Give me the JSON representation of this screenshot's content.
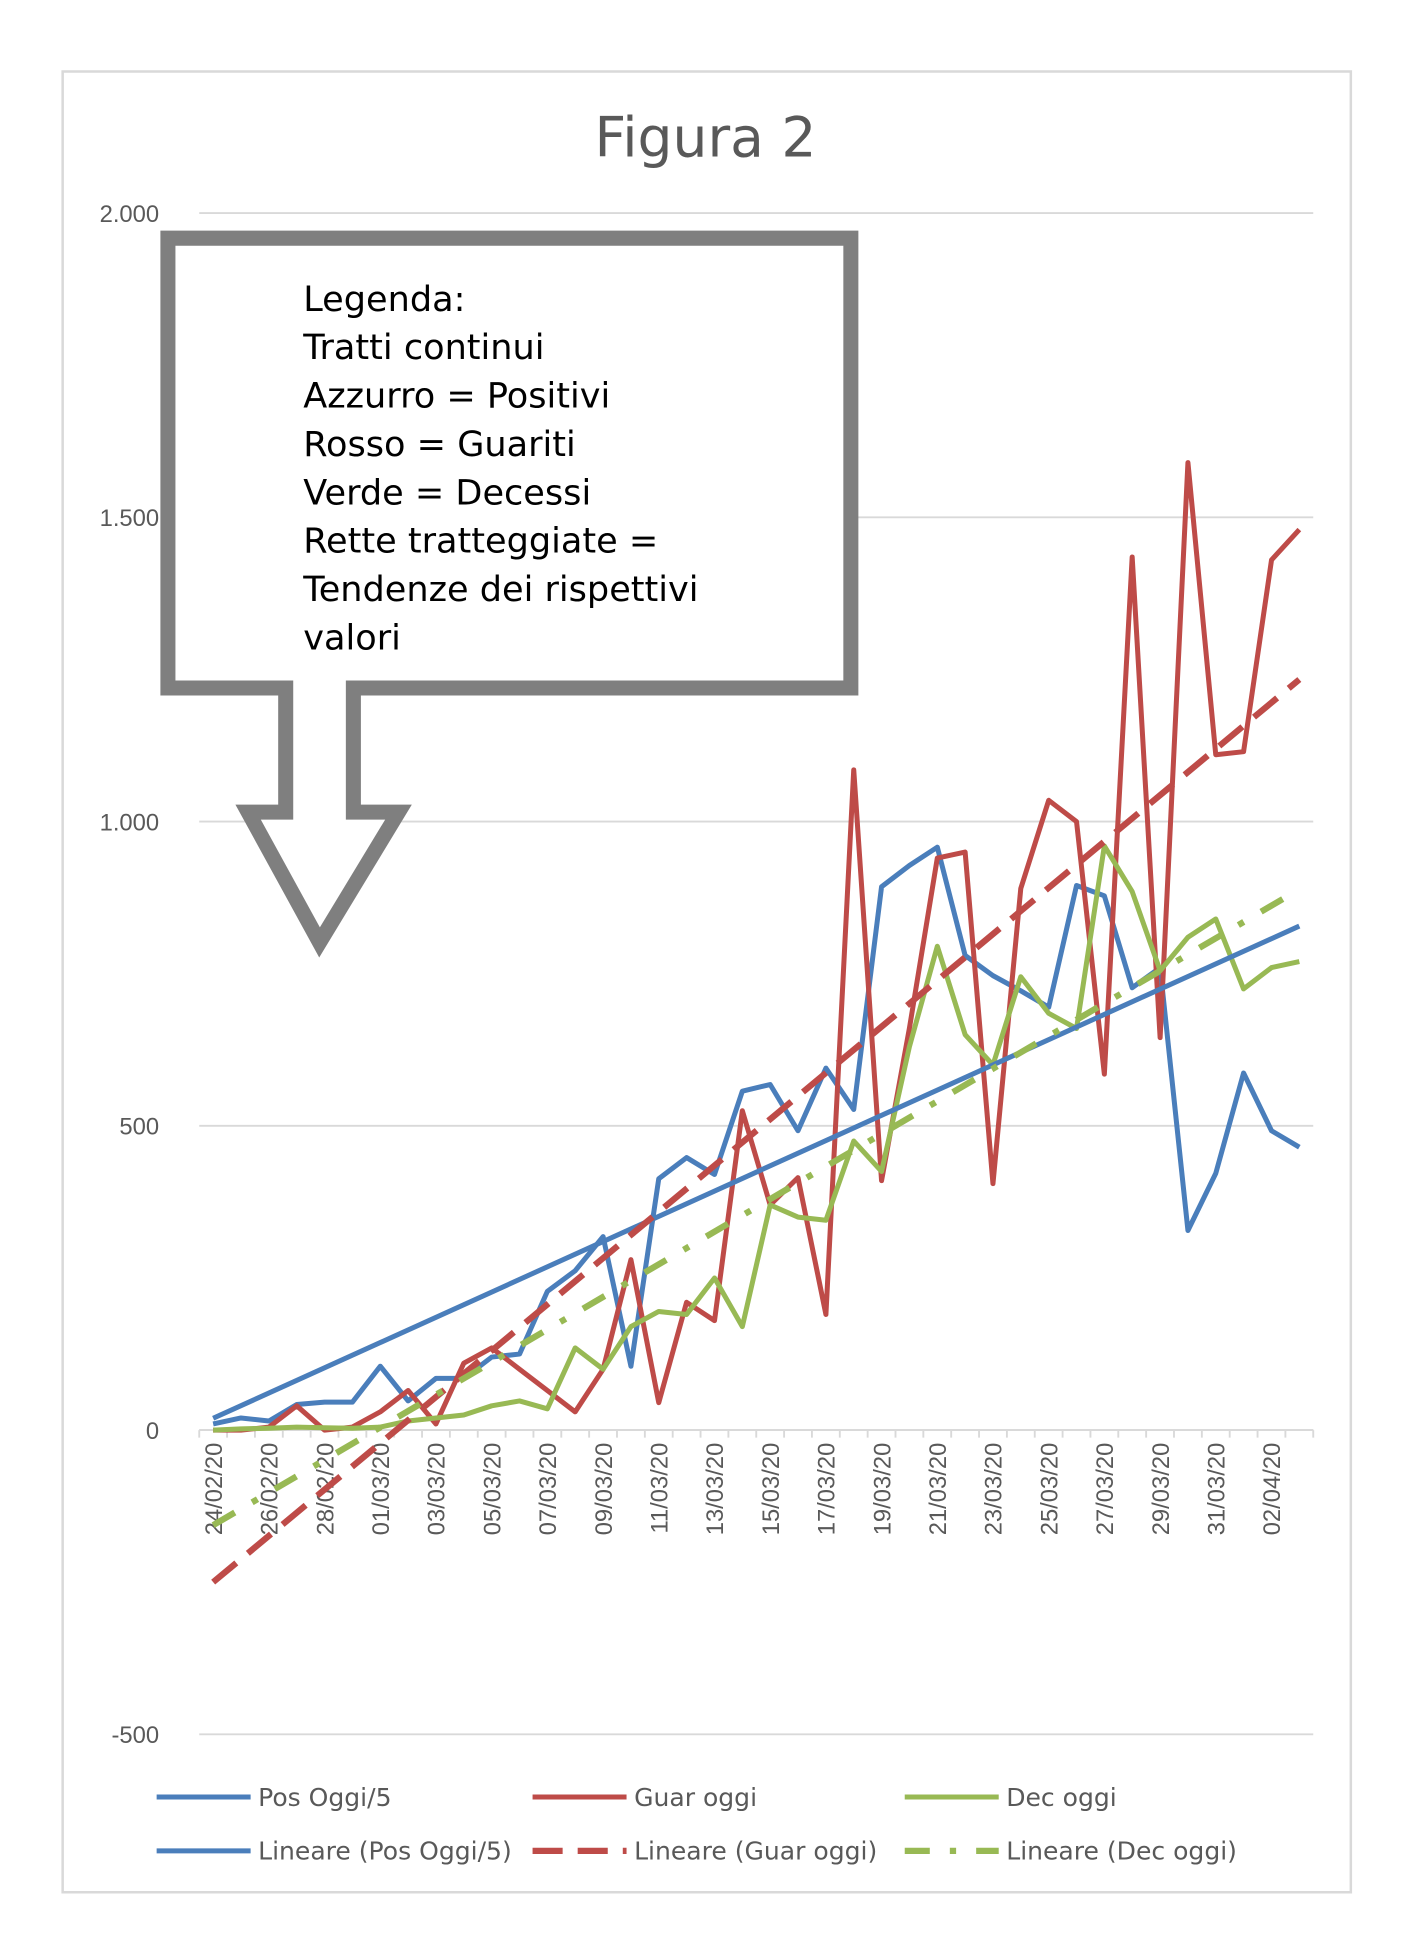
{
  "chart_data": {
    "type": "line",
    "title": "Figura 2",
    "categories": [
      "24/02/20",
      null,
      "26/02/20",
      null,
      "28/02/20",
      null,
      "01/03/20",
      null,
      "03/03/20",
      null,
      "05/03/20",
      null,
      "07/03/20",
      null,
      "09/03/20",
      null,
      "11/03/20",
      null,
      "13/03/20",
      null,
      "15/03/20",
      null,
      "17/03/20",
      null,
      "19/03/20",
      null,
      "21/03/20",
      null,
      "23/03/20",
      null,
      "25/03/20",
      null,
      "27/03/20",
      null,
      "29/03/20",
      null,
      "31/03/20",
      null,
      "02/04/20",
      null
    ],
    "series": [
      {
        "name": "Pos Oggi/5",
        "color": "#4a7ebb",
        "values": [
          10,
          20,
          15,
          42,
          46,
          46,
          105,
          48,
          85,
          85,
          120,
          125,
          228,
          262,
          318,
          105,
          413,
          448,
          420,
          557,
          568,
          492,
          595,
          527,
          893,
          928,
          958,
          780,
          747,
          722,
          695,
          895,
          878,
          727,
          760,
          328,
          422,
          587,
          492,
          465
        ]
      },
      {
        "name": "Guar oggi",
        "color": "#be4b48",
        "values": [
          0,
          0,
          5,
          40,
          0,
          5,
          30,
          65,
          10,
          110,
          135,
          100,
          65,
          30,
          100,
          280,
          45,
          210,
          180,
          525,
          370,
          415,
          190,
          1085,
          410,
          660,
          940,
          950,
          405,
          890,
          1035,
          1000,
          585,
          1435,
          645,
          1590,
          1110,
          1115,
          1430,
          1480
        ]
      },
      {
        "name": "Dec oggi",
        "color": "#98b954",
        "values": [
          0,
          2,
          3,
          5,
          4,
          3,
          5,
          15,
          20,
          25,
          40,
          48,
          35,
          135,
          100,
          170,
          195,
          190,
          250,
          170,
          370,
          350,
          345,
          475,
          425,
          630,
          795,
          650,
          600,
          745,
          685,
          660,
          960,
          885,
          755,
          810,
          840,
          725,
          760,
          770
        ]
      }
    ],
    "trendlines": [
      {
        "name": "Lineare (Pos Oggi/5)",
        "color": "#4a7ebb",
        "dash": "solid"
      },
      {
        "name": "Lineare (Guar oggi)",
        "color": "#be4b48",
        "dash": "dash"
      },
      {
        "name": "Lineare (Dec oggi)",
        "color": "#98b954",
        "dash": "dashdot"
      }
    ],
    "ylim": [
      -500,
      2000
    ],
    "yticks": [
      {
        "value": 2000,
        "label": "2.000"
      },
      {
        "value": 1500,
        "label": "1.500"
      },
      {
        "value": 1000,
        "label": "1.000"
      },
      500,
      0,
      -500
    ],
    "grid": true,
    "legend": "bottom",
    "annotation": {
      "lines": [
        "Legenda:",
        "Tratti continui",
        "Azzurro = Positivi",
        "Rosso = Guariti",
        "Verde = Decessi",
        "Rette tratteggiate =",
        "Tendenze dei rispettivi",
        "valori"
      ]
    }
  }
}
